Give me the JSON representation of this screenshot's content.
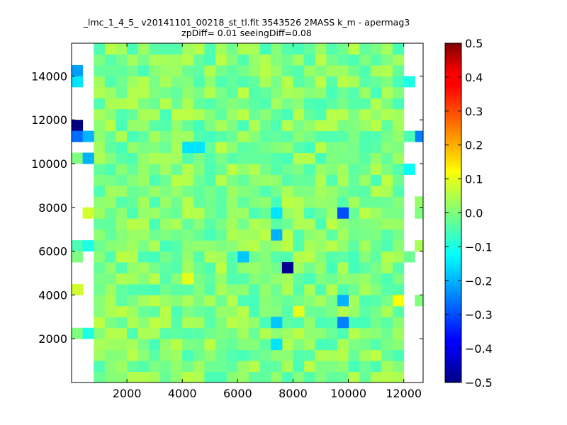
{
  "chart_data": {
    "type": "heatmap",
    "title_lines": [
      "_lmc_1_4_5_ v20141101_00218_st_tl.fit 3543526 2MASS k_m - apermag3",
      "zpDiff= 0.01 seeingDiff=0.08"
    ],
    "xlim": [
      0,
      12700
    ],
    "ylim": [
      0,
      15500
    ],
    "x_ticks": [
      2000,
      4000,
      6000,
      8000,
      10000,
      12000
    ],
    "x_tick_labels": [
      "2000",
      "4000",
      "6000",
      "8000",
      "10000",
      "12000"
    ],
    "y_ticks": [
      2000,
      4000,
      6000,
      8000,
      10000,
      12000,
      14000
    ],
    "y_tick_labels": [
      "2000",
      "4000",
      "6000",
      "8000",
      "10000",
      "12000",
      "14000"
    ],
    "colorbar": {
      "colormap": "jet",
      "vmin": -0.5,
      "vmax": 0.5,
      "ticks": [
        0.5,
        0.4,
        0.3,
        0.2,
        0.1,
        0.0,
        -0.1,
        -0.2,
        -0.3,
        -0.4,
        -0.5
      ],
      "tick_labels": [
        "0.5",
        "0.4",
        "0.3",
        "0.2",
        "0.1",
        "0.0",
        "−0.1",
        "−0.2",
        "−0.3",
        "−0.4",
        "−0.5"
      ]
    },
    "cell_size": [
      400,
      500
    ],
    "grid_x0": 0,
    "grid_y0": 0,
    "columns": 32,
    "rows": 31,
    "main_block": {
      "col_start": 2,
      "col_end": 29,
      "row_start": 0,
      "row_end": 30
    },
    "base_value_range": [
      -0.06,
      0.06
    ],
    "outliers": [
      {
        "x": 200,
        "y": 14250,
        "value": -0.22
      },
      {
        "x": 200,
        "y": 13750,
        "value": -0.15
      },
      {
        "x": 200,
        "y": 11750,
        "value": -0.5
      },
      {
        "x": 200,
        "y": 11250,
        "value": -0.27
      },
      {
        "x": 600,
        "y": 11250,
        "value": -0.2
      },
      {
        "x": 200,
        "y": 10250,
        "value": 0.0
      },
      {
        "x": 600,
        "y": 10250,
        "value": -0.2
      },
      {
        "x": 600,
        "y": 7750,
        "value": 0.08
      },
      {
        "x": 200,
        "y": 6250,
        "value": -0.05
      },
      {
        "x": 600,
        "y": 6250,
        "value": -0.1
      },
      {
        "x": 200,
        "y": 5750,
        "value": 0.0
      },
      {
        "x": 200,
        "y": 4250,
        "value": 0.08
      },
      {
        "x": 200,
        "y": 2250,
        "value": 0.0
      },
      {
        "x": 600,
        "y": 2250,
        "value": -0.1
      },
      {
        "x": 9800,
        "y": 7750,
        "value": -0.3
      },
      {
        "x": 7800,
        "y": 5250,
        "value": -0.48
      },
      {
        "x": 7200,
        "y": 6750,
        "value": -0.2
      },
      {
        "x": 7200,
        "y": 7750,
        "value": -0.15
      },
      {
        "x": 6200,
        "y": 5750,
        "value": -0.18
      },
      {
        "x": 4200,
        "y": 4750,
        "value": 0.1
      },
      {
        "x": 9800,
        "y": 3750,
        "value": -0.2
      },
      {
        "x": 9800,
        "y": 2750,
        "value": -0.25
      },
      {
        "x": 8200,
        "y": 3250,
        "value": 0.1
      },
      {
        "x": 7200,
        "y": 2750,
        "value": -0.18
      },
      {
        "x": 7200,
        "y": 1750,
        "value": -0.15
      },
      {
        "x": 11800,
        "y": 3750,
        "value": 0.12
      },
      {
        "x": 12200,
        "y": 13750,
        "value": -0.1
      },
      {
        "x": 12600,
        "y": 11250,
        "value": -0.25
      },
      {
        "x": 12200,
        "y": 11250,
        "value": -0.05
      },
      {
        "x": 12200,
        "y": 9750,
        "value": -0.12
      },
      {
        "x": 12600,
        "y": 8250,
        "value": 0.02
      },
      {
        "x": 12600,
        "y": 7750,
        "value": 0.0
      },
      {
        "x": 12600,
        "y": 6000,
        "value": 0.04
      },
      {
        "x": 12200,
        "y": 5750,
        "value": -0.02
      },
      {
        "x": 12600,
        "y": 3750,
        "value": 0.0
      },
      {
        "x": 4200,
        "y": 10750,
        "value": -0.15
      },
      {
        "x": 4600,
        "y": 10750,
        "value": -0.15
      }
    ]
  }
}
